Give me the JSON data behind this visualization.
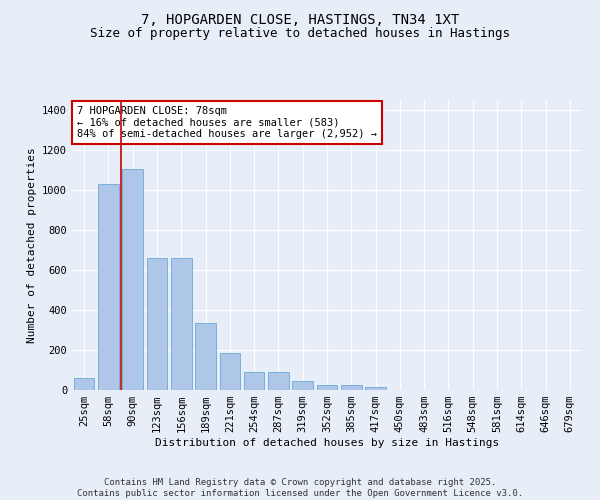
{
  "title": "7, HOPGARDEN CLOSE, HASTINGS, TN34 1XT",
  "subtitle": "Size of property relative to detached houses in Hastings",
  "xlabel": "Distribution of detached houses by size in Hastings",
  "ylabel": "Number of detached properties",
  "categories": [
    "25sqm",
    "58sqm",
    "90sqm",
    "123sqm",
    "156sqm",
    "189sqm",
    "221sqm",
    "254sqm",
    "287sqm",
    "319sqm",
    "352sqm",
    "385sqm",
    "417sqm",
    "450sqm",
    "483sqm",
    "516sqm",
    "548sqm",
    "581sqm",
    "614sqm",
    "646sqm",
    "679sqm"
  ],
  "values": [
    60,
    1030,
    1105,
    660,
    660,
    335,
    185,
    90,
    90,
    45,
    27,
    27,
    16,
    0,
    0,
    0,
    0,
    0,
    0,
    0,
    0
  ],
  "bar_color": "#aec6e8",
  "bar_edgecolor": "#5a9fd4",
  "vline_color": "#cc0000",
  "vline_x": 1.5,
  "annotation_text": "7 HOPGARDEN CLOSE: 78sqm\n← 16% of detached houses are smaller (583)\n84% of semi-detached houses are larger (2,952) →",
  "annotation_box_edgecolor": "#cc0000",
  "annotation_box_facecolor": "#ffffff",
  "ylim": [
    0,
    1450
  ],
  "yticks": [
    0,
    200,
    400,
    600,
    800,
    1000,
    1200,
    1400
  ],
  "bg_color": "#e8eef8",
  "plot_bg_color": "#e8eef8",
  "grid_color": "#ffffff",
  "footer_text": "Contains HM Land Registry data © Crown copyright and database right 2025.\nContains public sector information licensed under the Open Government Licence v3.0.",
  "title_fontsize": 10,
  "subtitle_fontsize": 9,
  "xlabel_fontsize": 8,
  "ylabel_fontsize": 8,
  "tick_fontsize": 7.5,
  "annotation_fontsize": 7.5,
  "footer_fontsize": 6.5
}
